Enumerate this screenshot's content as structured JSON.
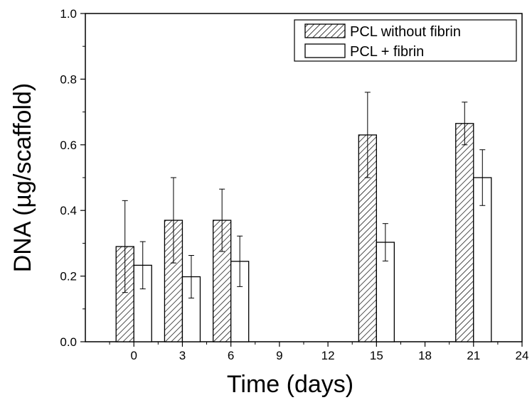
{
  "chart_data": {
    "type": "bar",
    "xlabel": "Time (days)",
    "ylabel": "DNA (µg/scaffold)",
    "xlim": [
      -3,
      24
    ],
    "ylim": [
      0,
      1.0
    ],
    "x_ticks": [
      0,
      3,
      6,
      9,
      12,
      15,
      18,
      21,
      24
    ],
    "x_tick_labels": [
      "0",
      "3",
      "6",
      "9",
      "12",
      "15",
      "18",
      "21",
      "24"
    ],
    "y_ticks": [
      0,
      0.2,
      0.4,
      0.6,
      0.8,
      1.0
    ],
    "y_tick_labels": [
      "0.0",
      "0.2",
      "0.4",
      "0.6",
      "0.8",
      "1.0"
    ],
    "legend_position": "top-right",
    "grid": false,
    "series": [
      {
        "name": "PCL without fibrin",
        "pattern": "hatched",
        "points": [
          {
            "x": 0,
            "value": 0.29,
            "error": 0.14
          },
          {
            "x": 3,
            "value": 0.37,
            "error": 0.13
          },
          {
            "x": 6,
            "value": 0.37,
            "error": 0.095
          },
          {
            "x": 15,
            "value": 0.63,
            "error": 0.13
          },
          {
            "x": 21,
            "value": 0.665,
            "error": 0.065
          }
        ]
      },
      {
        "name": "PCL + fibrin",
        "pattern": "open",
        "points": [
          {
            "x": 0,
            "value": 0.233,
            "error": 0.072
          },
          {
            "x": 3,
            "value": 0.198,
            "error": 0.065
          },
          {
            "x": 6,
            "value": 0.245,
            "error": 0.077
          },
          {
            "x": 15,
            "value": 0.303,
            "error": 0.057
          },
          {
            "x": 21,
            "value": 0.5,
            "error": 0.085
          }
        ]
      }
    ]
  }
}
